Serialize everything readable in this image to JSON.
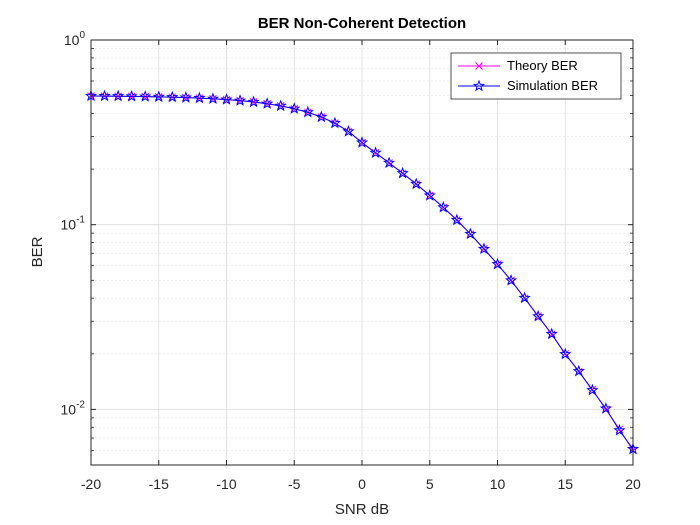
{
  "chart_data": {
    "type": "line",
    "title": "BER Non-Coherent Detection",
    "xlabel": "SNR dB",
    "ylabel": "BER",
    "xlim": [
      -20,
      20
    ],
    "ylim": [
      0.005,
      1
    ],
    "yscale": "log",
    "grid": true,
    "minor_grid": true,
    "legend_position": "top-right",
    "x_ticks": [
      -20,
      -15,
      -10,
      -5,
      0,
      5,
      10,
      15,
      20
    ],
    "x_tick_labels": [
      "-20",
      "-15",
      "-10",
      "-5",
      "0",
      "5",
      "10",
      "15",
      "20"
    ],
    "y_ticks": [
      {
        "value": 1,
        "base": "10",
        "exp": "0"
      },
      {
        "value": 0.1,
        "base": "10",
        "exp": "-1"
      },
      {
        "value": 0.01,
        "base": "10",
        "exp": "-2"
      }
    ],
    "x": [
      -20,
      -19,
      -18,
      -17,
      -16,
      -15,
      -14,
      -13,
      -12,
      -11,
      -10,
      -9,
      -8,
      -7,
      -6,
      -5,
      -4,
      -3,
      -2,
      -1,
      0,
      1,
      2,
      3,
      4,
      5,
      6,
      7,
      8,
      9,
      10,
      11,
      12,
      13,
      14,
      15,
      16,
      17,
      18,
      19,
      20
    ],
    "series": [
      {
        "name": "Theory BER",
        "color": "#ff00ff",
        "marker": "x-mark",
        "values": [
          0.4975,
          0.4969,
          0.4961,
          0.4951,
          0.4938,
          0.4922,
          0.4902,
          0.4877,
          0.4846,
          0.4806,
          0.4756,
          0.4694,
          0.4616,
          0.4519,
          0.4398,
          0.4247,
          0.406,
          0.383,
          0.3546,
          0.3199,
          0.2782,
          0.245,
          0.216,
          0.19,
          0.166,
          0.144,
          0.124,
          0.106,
          0.089,
          0.074,
          0.061,
          0.05,
          0.04,
          0.032,
          0.0255,
          0.02,
          0.016,
          0.0128,
          0.01,
          0.0078,
          0.006
        ]
      },
      {
        "name": "Simulation BER",
        "color": "#0000ff",
        "marker": "star",
        "values": [
          0.4976,
          0.4968,
          0.4962,
          0.495,
          0.4939,
          0.4921,
          0.4903,
          0.4876,
          0.4847,
          0.4805,
          0.4757,
          0.4693,
          0.4617,
          0.4518,
          0.4399,
          0.4246,
          0.4061,
          0.3829,
          0.3547,
          0.3198,
          0.2783,
          0.2449,
          0.2161,
          0.1899,
          0.1661,
          0.1439,
          0.1241,
          0.1059,
          0.0891,
          0.0739,
          0.0611,
          0.0499,
          0.0401,
          0.0319,
          0.0256,
          0.0199,
          0.0161,
          0.0127,
          0.0101,
          0.0077,
          0.0061
        ]
      }
    ]
  }
}
